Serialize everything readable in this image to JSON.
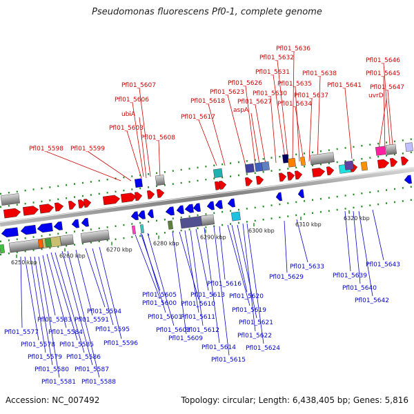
{
  "title": "Pseudomonas fluorescens Pf0-1, complete genome",
  "footer": {
    "accession": "Accession: NC_007492",
    "summary": "Topology: circular; Length: 6,438,405 bp; Genes: 5,816"
  },
  "colors": {
    "forward_label": "#cc0000",
    "reverse_label": "#0000cc",
    "forward_gene": "#ee0000",
    "reverse_gene": "#0000ee",
    "tick": "#228b22",
    "backbone": "#8a8a8a"
  },
  "scale_ticks": [
    "6250 kbp",
    "6260 kbp",
    "6270 kbp",
    "6280 kbp",
    "6290 kbp",
    "6300 kbp",
    "6310 kbp",
    "6320 kbp"
  ],
  "forward_labels": [
    "Pfl01_5598",
    "Pfl01_5599",
    "Pfl01_5603",
    "Pfl01_5608",
    "ubiA",
    "Pfl01_5606",
    "Pfl01_5607",
    "Pfl01_5617",
    "Pfl01_5618",
    "Pfl01_5623",
    "Pfl01_5626",
    "aspA",
    "Pfl01_5627",
    "Pfl01_5630",
    "Pfl01_5631",
    "Pfl01_5632",
    "Pfl01_5636",
    "Pfl01_5635",
    "Pfl01_5634",
    "Pfl01_5637",
    "Pfl01_5638",
    "Pfl01_5641",
    "Pfl01_5646",
    "Pfl01_5645",
    "Pfl01_5647",
    "uvrD"
  ],
  "reverse_labels": [
    "Pfl01_5577",
    "Pfl01_5578",
    "Pfl01_5579",
    "Pfl01_5580",
    "Pfl01_5581",
    "Pfl01_5583",
    "Pfl01_5584",
    "Pfl01_5585",
    "Pfl01_5586",
    "Pfl01_5587",
    "Pfl01_5588",
    "Pfl01_5591",
    "Pfl01_5594",
    "Pfl01_5595",
    "Pfl01_5596",
    "Pfl01_5600",
    "Pfl01_5601",
    "Pfl01_5602",
    "Pfl01_5605",
    "Pfl01_5609",
    "Pfl01_5610",
    "Pfl01_5611",
    "Pfl01_5612",
    "Pfl01_5613",
    "Pfl01_5614",
    "Pfl01_5615",
    "Pfl01_5616",
    "Pfl01_5619",
    "Pfl01_5620",
    "Pfl01_5621",
    "Pfl01_5622",
    "Pfl01_5624",
    "Pfl01_5629",
    "Pfl01_5633",
    "Pfl01_5639",
    "Pfl01_5640",
    "Pfl01_5642",
    "Pfl01_5643"
  ]
}
